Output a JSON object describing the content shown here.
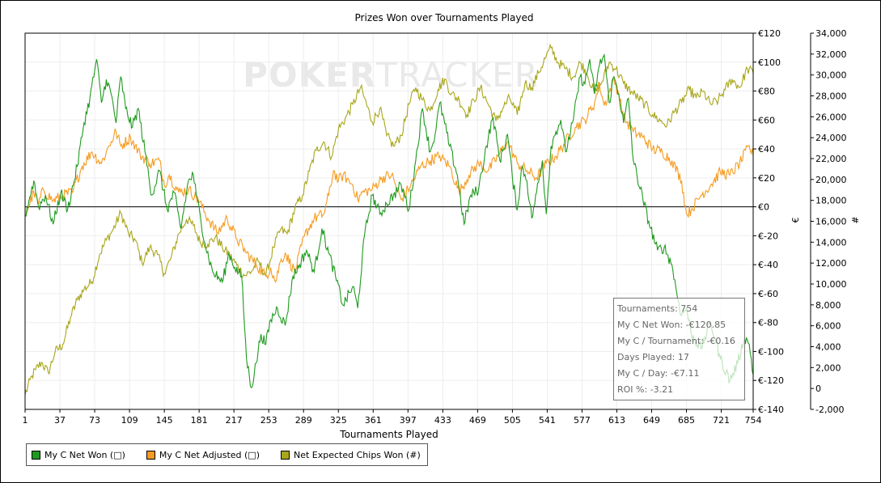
{
  "window": {
    "watermark_left": "POKER",
    "watermark_right": "TRACKER"
  },
  "chart_data": {
    "type": "line",
    "title": "Prizes Won over Tournaments Played",
    "xlabel": "Tournaments Played",
    "ylabel_left": "€",
    "ylabel_right": "#",
    "x_range": [
      1,
      754
    ],
    "x_ticks": [
      "1",
      "37",
      "73",
      "109",
      "145",
      "181",
      "217",
      "253",
      "289",
      "325",
      "361",
      "397",
      "433",
      "469",
      "505",
      "541",
      "577",
      "613",
      "649",
      "685",
      "721",
      "754"
    ],
    "x_tick_values": [
      1,
      37,
      73,
      109,
      145,
      181,
      217,
      253,
      289,
      325,
      361,
      397,
      433,
      469,
      505,
      541,
      577,
      613,
      649,
      685,
      721,
      754
    ],
    "y_left_range": [
      -140,
      120
    ],
    "y_left_ticks": [
      "€120",
      "€100",
      "€80",
      "€60",
      "€40",
      "€20",
      "€0",
      "€-20",
      "€-40",
      "€-60",
      "€-80",
      "€-100",
      "€-120",
      "€-140"
    ],
    "y_left_tick_values": [
      120,
      100,
      80,
      60,
      40,
      20,
      0,
      -20,
      -40,
      -60,
      -80,
      -100,
      -120,
      -140
    ],
    "y_right_range": [
      -2000,
      34000
    ],
    "y_right_ticks": [
      "34,000",
      "32,000",
      "30,000",
      "28,000",
      "26,000",
      "24,000",
      "22,000",
      "20,000",
      "18,000",
      "16,000",
      "14,000",
      "12,000",
      "10,000",
      "8,000",
      "6,000",
      "4,000",
      "2,000",
      "0",
      "-2,000"
    ],
    "y_right_tick_values": [
      34000,
      32000,
      30000,
      28000,
      26000,
      24000,
      22000,
      20000,
      18000,
      16000,
      14000,
      12000,
      10000,
      8000,
      6000,
      4000,
      2000,
      0,
      -2000
    ],
    "grid": true,
    "legend_position": "bottom-left",
    "series": [
      {
        "name": "My C Net Won (□)",
        "color": "#1f9a1f",
        "axis": "left",
        "x": [
          1,
          10,
          15,
          22,
          30,
          38,
          45,
          55,
          62,
          68,
          75,
          80,
          85,
          90,
          95,
          100,
          105,
          112,
          118,
          125,
          132,
          140,
          148,
          155,
          162,
          170,
          175,
          178,
          182,
          187,
          195,
          205,
          212,
          218,
          225,
          230,
          235,
          240,
          245,
          250,
          255,
          262,
          270,
          278,
          285,
          292,
          300,
          308,
          315,
          322,
          330,
          340,
          345,
          352,
          360,
          368,
          375,
          382,
          390,
          398,
          405,
          412,
          420,
          425,
          430,
          440,
          448,
          455,
          462,
          470,
          478,
          485,
          492,
          500,
          505,
          510,
          515,
          520,
          525,
          530,
          536,
          540,
          545,
          550,
          555,
          560,
          568,
          575,
          580,
          585,
          590,
          595,
          600,
          605,
          610,
          615,
          620,
          625,
          630,
          640,
          648,
          655,
          662,
          670,
          675,
          680,
          685,
          690,
          700,
          710,
          715,
          720,
          730,
          738,
          745,
          750,
          754
        ],
        "y": [
          -6,
          18,
          0,
          8,
          -12,
          10,
          -2,
          28,
          58,
          75,
          102,
          72,
          88,
          78,
          58,
          90,
          68,
          55,
          68,
          38,
          8,
          25,
          -2,
          10,
          -15,
          18,
          22,
          8,
          -5,
          -25,
          -45,
          -52,
          -32,
          -42,
          -48,
          -105,
          -125,
          -108,
          -88,
          -95,
          -78,
          -70,
          -82,
          -48,
          -40,
          -30,
          -45,
          -15,
          -32,
          -48,
          -68,
          -55,
          -70,
          -20,
          8,
          -5,
          2,
          8,
          15,
          -2,
          32,
          68,
          38,
          50,
          72,
          42,
          22,
          -12,
          8,
          12,
          42,
          62,
          32,
          50,
          20,
          -2,
          28,
          18,
          -8,
          10,
          32,
          -5,
          42,
          52,
          60,
          38,
          60,
          90,
          85,
          102,
          78,
          98,
          105,
          72,
          90,
          78,
          58,
          75,
          32,
          5,
          -15,
          -30,
          -28,
          -40,
          -60,
          -75,
          -70,
          -88,
          -98,
          -80,
          -92,
          -105,
          -120,
          -108,
          -90,
          -95,
          -116
        ]
      },
      {
        "name": "My C Net Adjusted (□)",
        "color": "#f59b1f",
        "axis": "left",
        "x": [
          1,
          10,
          15,
          20,
          30,
          40,
          50,
          60,
          70,
          80,
          85,
          90,
          95,
          100,
          110,
          120,
          130,
          140,
          145,
          150,
          160,
          170,
          180,
          190,
          200,
          210,
          220,
          230,
          240,
          250,
          255,
          260,
          265,
          270,
          280,
          290,
          300,
          310,
          315,
          320,
          325,
          330,
          340,
          345,
          350,
          360,
          370,
          380,
          390,
          400,
          410,
          420,
          430,
          440,
          450,
          460,
          470,
          480,
          490,
          500,
          510,
          520,
          530,
          540,
          550,
          560,
          570,
          580,
          590,
          595,
          600,
          610,
          615,
          620,
          630,
          640,
          650,
          660,
          670,
          680,
          685,
          690,
          700,
          710,
          720,
          730,
          740,
          750,
          754
        ],
        "y": [
          -6,
          10,
          2,
          12,
          4,
          8,
          10,
          28,
          38,
          30,
          38,
          45,
          52,
          42,
          48,
          36,
          30,
          32,
          15,
          22,
          10,
          12,
          5,
          -8,
          -18,
          -8,
          -22,
          -32,
          -40,
          -48,
          -42,
          -52,
          -38,
          -32,
          -45,
          -20,
          -8,
          -5,
          8,
          25,
          18,
          22,
          15,
          5,
          10,
          12,
          20,
          22,
          5,
          15,
          28,
          32,
          35,
          28,
          10,
          22,
          30,
          25,
          35,
          45,
          30,
          25,
          20,
          30,
          35,
          45,
          55,
          60,
          72,
          85,
          70,
          88,
          78,
          62,
          52,
          48,
          40,
          38,
          32,
          18,
          -5,
          -2,
          8,
          15,
          24,
          22,
          30,
          42,
          35
        ]
      },
      {
        "name": "Net Expected Chips Won (#)",
        "color": "#a8a61a",
        "axis": "right",
        "x": [
          1,
          8,
          12,
          18,
          25,
          32,
          40,
          48,
          55,
          62,
          70,
          78,
          85,
          92,
          100,
          108,
          115,
          122,
          130,
          138,
          145,
          152,
          160,
          168,
          175,
          182,
          190,
          198,
          205,
          212,
          220,
          228,
          235,
          242,
          250,
          258,
          265,
          272,
          280,
          288,
          295,
          302,
          310,
          318,
          325,
          332,
          340,
          348,
          352,
          360,
          368,
          375,
          382,
          390,
          398,
          405,
          412,
          420,
          428,
          435,
          442,
          450,
          458,
          465,
          472,
          480,
          488,
          495,
          502,
          510,
          518,
          525,
          532,
          540,
          545,
          552,
          560,
          568,
          575,
          582,
          590,
          598,
          605,
          612,
          620,
          628,
          635,
          642,
          650,
          658,
          665,
          672,
          680,
          688,
          695,
          702,
          710,
          718,
          725,
          732,
          740,
          748,
          754
        ],
        "y": [
          -600,
          1200,
          1800,
          2500,
          1500,
          3500,
          4200,
          6800,
          8500,
          9500,
          10200,
          12800,
          14200,
          15200,
          16800,
          14800,
          14200,
          12000,
          13500,
          12800,
          11000,
          12500,
          14800,
          16200,
          15600,
          14000,
          13800,
          14500,
          13500,
          12800,
          11800,
          10800,
          11200,
          12200,
          10800,
          13500,
          15200,
          14800,
          17200,
          18500,
          20800,
          22800,
          23600,
          22200,
          24800,
          25800,
          27200,
          28800,
          27800,
          25500,
          26800,
          24200,
          23200,
          24200,
          27200,
          28800,
          27600,
          26600,
          28600,
          29600,
          28200,
          27600,
          26200,
          27600,
          28800,
          27200,
          25600,
          26800,
          27800,
          26200,
          29200,
          28800,
          30200,
          31800,
          32600,
          31200,
          30600,
          29800,
          31200,
          30200,
          28200,
          29400,
          31200,
          30600,
          29200,
          28400,
          27800,
          27200,
          26200,
          25600,
          25200,
          26400,
          27400,
          28600,
          27800,
          28400,
          27200,
          27600,
          28600,
          29600,
          28800,
          30600,
          30200
        ]
      }
    ]
  },
  "legend": {
    "items": [
      {
        "label": "My C Net Won (□)",
        "color": "#1f9a1f"
      },
      {
        "label": "My C Net Adjusted (□)",
        "color": "#f59b1f"
      },
      {
        "label": "Net Expected Chips Won (#)",
        "color": "#a8a61a"
      }
    ]
  },
  "stats": {
    "tournaments": "Tournaments: 754",
    "net_won": "My C Net Won: -€120.85",
    "per_tournament": "My C / Tournament: -€0.16",
    "days_played": "Days Played: 17",
    "per_day": "My C / Day: -€7.11",
    "roi": "ROI %: -3.21"
  }
}
